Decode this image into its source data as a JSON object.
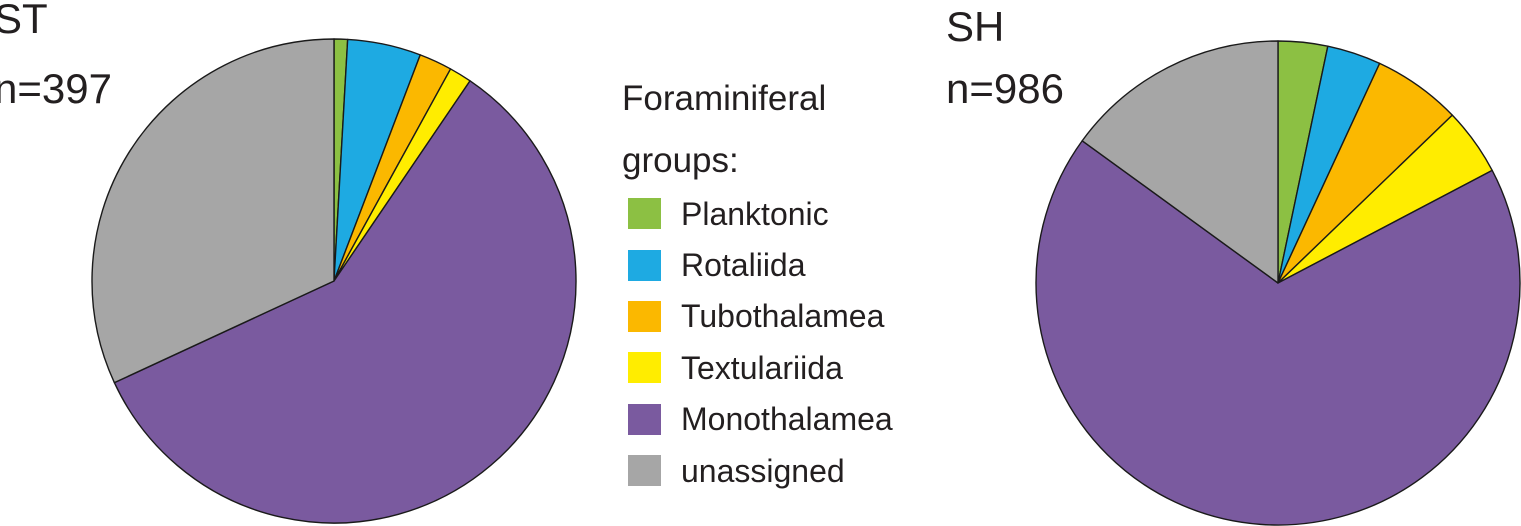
{
  "legend": {
    "title_line1": "Foraminiferal",
    "title_line2": "groups:",
    "placement": "center"
  },
  "colors": {
    "Planktonic": "#8cc043",
    "Rotaliida": "#1eaae2",
    "Tubothalamea": "#fbb800",
    "Textulariida": "#ffed00",
    "Monothalamea": "#7a5a9f",
    "unassigned": "#a6a6a6"
  },
  "chart_data": [
    {
      "type": "pie",
      "title": "ST",
      "subtitle": "n=397",
      "categories": [
        "Planktonic",
        "Rotaliida",
        "Tubothalamea",
        "Textulariida",
        "Monothalamea",
        "unassigned"
      ],
      "values": [
        0.9,
        4.9,
        2.2,
        1.5,
        58.6,
        31.9
      ],
      "unit": "percent",
      "start": "12 o'clock",
      "direction": "clockwise",
      "legend": true
    },
    {
      "type": "pie",
      "title": "SH",
      "subtitle": "n=986",
      "categories": [
        "Planktonic",
        "Rotaliida",
        "Tubothalamea",
        "Textulariida",
        "Monothalamea",
        "unassigned"
      ],
      "values": [
        3.3,
        3.6,
        5.9,
        4.5,
        67.7,
        15.0
      ],
      "unit": "percent",
      "start": "12 o'clock",
      "direction": "clockwise",
      "legend": true
    }
  ]
}
